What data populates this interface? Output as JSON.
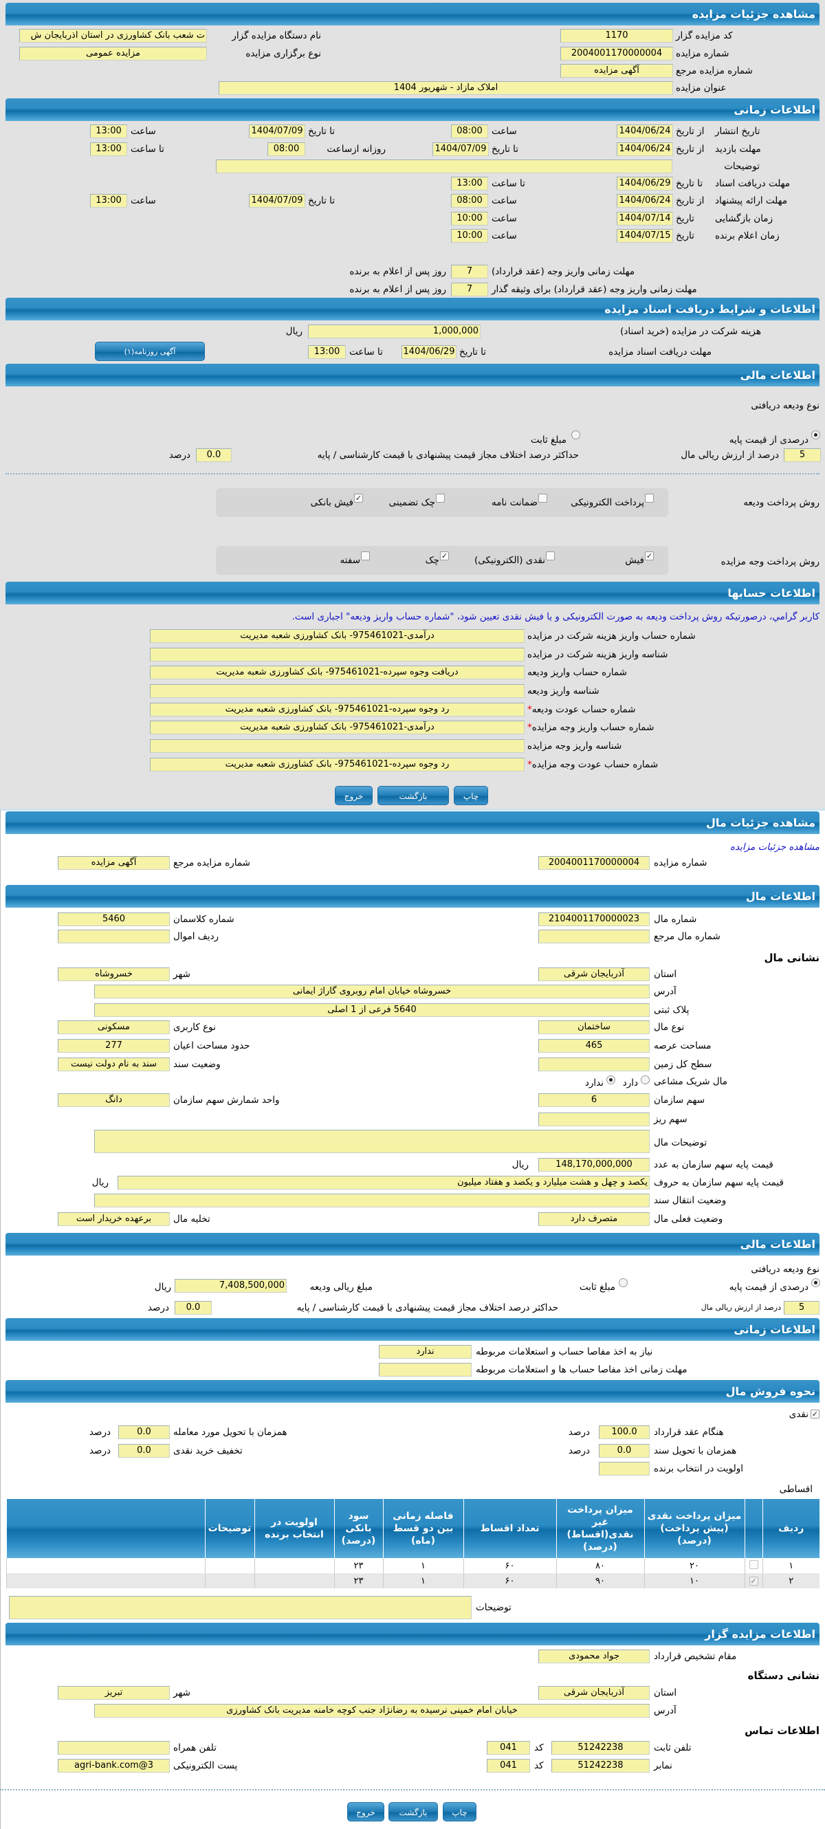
{
  "auction": {
    "header": "مشاهده جزئیات مزایده",
    "code_label": "کد مزایده گزار",
    "code": "1170",
    "org_label": "نام دستگاه مزایده گزار",
    "org": "ت شعب بانک کشاورزی در استان اذربایجان ش",
    "number_label": "شماره مزایده",
    "number": "2004001170000004",
    "type_label": "نوع برگزاری مزایده",
    "type": "مزایده عمومی",
    "ref_label": "شماره مزایده مرجع",
    "ref": "آگهی مزایده",
    "title_label": "عنوان مزایده",
    "title": "املاک مازاد - شهریور 1404"
  },
  "timing": {
    "header": "اطلاعات زمانی",
    "publish": {
      "label": "تاریخ انتشار",
      "from_label": "از تاریخ",
      "from": "1404/06/24",
      "time1_label": "ساعت",
      "time1": "08:00",
      "to_label": "تا تاریخ",
      "to": "1404/07/09",
      "time2_label": "ساعت",
      "time2": "13:00"
    },
    "visit": {
      "label": "مهلت بازدید",
      "from_label": "از تاریخ",
      "from": "1404/06/24",
      "to_label": "تا تاریخ",
      "to": "1404/07/09",
      "daily_label": "روزانه ازساعت",
      "daily_from": "08:00",
      "daily_to_label": "تا ساعت",
      "daily_to": "13:00"
    },
    "notes_label": "توضیحات",
    "notes": "",
    "docs": {
      "label": "مهلت دریافت اسناد",
      "to_label": "تا تاریخ",
      "to": "1404/06/29",
      "time_label": "تا ساعت",
      "time": "13:00"
    },
    "offer": {
      "label": "مهلت ارائه پیشنهاد",
      "from_label": "از تاریخ",
      "from": "1404/06/24",
      "time1_label": "ساعت",
      "time1": "08:00",
      "to_label": "تا تاریخ",
      "to": "1404/07/09",
      "time2_label": "ساعت",
      "time2": "13:00"
    },
    "opening": {
      "label": "زمان بازگشایی",
      "date_label": "تاریخ",
      "date": "1404/07/14",
      "time_label": "ساعت",
      "time": "10:00"
    },
    "winner": {
      "label": "زمان اعلام برنده",
      "date_label": "تاریخ",
      "date": "1404/07/15",
      "time_label": "ساعت",
      "time": "10:00"
    },
    "pay1": {
      "label": "مهلت زمانی واریز وجه (عقد قرارداد)",
      "days": "7",
      "suffix": "روز پس از اعلام به برنده"
    },
    "pay2": {
      "label": "مهلت زمانی واریز وجه (عقد قرارداد) برای وثیقه گذار",
      "days": "7",
      "suffix": "روز پس از اعلام به برنده"
    }
  },
  "docs": {
    "header": "اطلاعات و شرایط دریافت اسناد مزایده",
    "cost_label": "هزینه شرکت در مزایده (خرید اسناد)",
    "cost": "1,000,000",
    "currency": "ریال",
    "deadline_label": "مهلت دریافت اسناد مزایده",
    "to_label": "تا تاریخ",
    "to": "1404/06/29",
    "time_label": "تا ساعت",
    "time": "13:00",
    "newspaper_button": "آگهی روزنامه(۱)"
  },
  "finance": {
    "header": "اطلاعات مالی",
    "deposit_type_label": "نوع ودیعه دریافتی",
    "opt_percent": "درصدی از قیمت پایه",
    "opt_fixed": "مبلغ ثابت",
    "selected": "درصدی از قیمت پایه",
    "percent": "5",
    "percent_label": "درصد از ارزش ریالی مال",
    "max_diff_label": "حداکثر درصد اختلاف مجاز قیمت پیشنهادی با قیمت کارشناسی / پایه",
    "max_diff": "0.0",
    "percent_unit": "درصد",
    "deposit_method_label": "روش پرداخت ودیعه",
    "deposit_methods": [
      {
        "label": "پرداخت الکترونیکی",
        "checked": false
      },
      {
        "label": "ضمانت نامه",
        "checked": false
      },
      {
        "label": "چک تضمینی",
        "checked": false
      },
      {
        "label": "فیش بانکی",
        "checked": true
      }
    ],
    "payment_method_label": "روش پرداخت وجه مزایده",
    "payment_methods": [
      {
        "label": "فیش",
        "checked": true
      },
      {
        "label": "نقدی (الکترونیکی)",
        "checked": false
      },
      {
        "label": "چک",
        "checked": true
      },
      {
        "label": "سفته",
        "checked": false
      }
    ]
  },
  "accounts": {
    "header": "اطلاعات حسابها",
    "notice": "کاربر گرامي، درصورتیکه روش پرداخت ودیعه به صورت الکترونیکی و یا فیش نقدی تعیین شود، \"شماره حساب واریز ودیعه\" اجباری است.",
    "rows": [
      {
        "label": "شماره حساب واریز هزینه شرکت در مزایده",
        "value": "درآمدی-975461021- بانک کشاورزی شعبه مدیریت",
        "required": false
      },
      {
        "label": "شناسه واریز هزینه شرکت در مزایده",
        "value": "",
        "required": false
      },
      {
        "label": "شماره حساب واریز ودیعه",
        "value": "دریافت وجوه سپرده-975461021- بانک کشاورزی شعبه مدیریت",
        "required": false
      },
      {
        "label": "شناسه واریز ودیعه",
        "value": "",
        "required": false
      },
      {
        "label": "شماره حساب عودت ودیعه",
        "value": "رد وجوه سپرده-975461021- بانک کشاورزی شعبه مدیریت",
        "required": true
      },
      {
        "label": "شماره حساب واریز وجه مزایده",
        "value": "درآمدی-975461021- بانک کشاورزی شعبه مدیریت",
        "required": true
      },
      {
        "label": "شناسه واریز وجه مزایده",
        "value": "",
        "required": false
      },
      {
        "label": "شماره حساب عودت وجه مزایده",
        "value": "رد وجوه سپرده-975461021- بانک کشاورزی شعبه مدیریت",
        "required": true
      }
    ],
    "required_mark": "*"
  },
  "buttons": {
    "print": "چاپ",
    "back": "بازگشت",
    "exit": "خروج"
  },
  "item": {
    "header": "مشاهده جزئیات مال",
    "link": "مشاهده جزئیات مزایده",
    "auction_number_label": "شماره مزایده",
    "auction_number": "2004001170000004",
    "ref_label": "شماره مزایده مرجع",
    "ref": "آگهی مزایده"
  },
  "property": {
    "header": "اطلاعات مال",
    "number_label": "شماره مال",
    "number": "2104001170000023",
    "class_label": "شماره کلاسمان",
    "class": "5460",
    "ref_label": "شماره مال مرجع",
    "ref": "",
    "row_label": "ردیف اموال",
    "row": "",
    "address_header": "نشانی مال",
    "province_label": "استان",
    "province": "آذربایجان شرقی",
    "city_label": "شهر",
    "city": "خسروشاه",
    "address_label": "آدرس",
    "address": "خسروشاه خیابان امام روبروی گاراژ ایمانی",
    "plaque_label": "پلاک ثبتی",
    "plaque": "5640 فرعی از 1 اصلی",
    "kind_label": "نوع مال",
    "kind": "ساختمان",
    "usage_label": "نوع کاربری",
    "usage": "مسکونی",
    "land_area_label": "مساحت عرصه",
    "land_area": "465",
    "building_area_label": "حدود مساحت اعیان",
    "building_area": "277",
    "total_land_label": "سطح کل زمین",
    "total_land": "",
    "deed_status_label": "وضعیت سند",
    "deed_status": "سند به نام دولت نیست",
    "shared_label": "مال شریک مشاعی",
    "shared_yes": "دارد",
    "shared_no": "ندارد",
    "shared": "ندارد",
    "share_label": "سهم سازمان",
    "share": "6",
    "share_unit_label": "واحد شمارش سهم سازمان",
    "share_unit": "دانگ",
    "subshare_label": "سهم ریز",
    "subshare": "",
    "desc_label": "توضیحات مال",
    "desc": "",
    "price_label": "قیمت پایه سهم سازمان به عدد",
    "price": "148,170,000,000",
    "price_words_label": "قیمت پایه سهم سازمان به حروف",
    "price_words": "یکصد و چهل و هشت میلیارد و یکصد و هفتاد میلیون",
    "currency": "ریال",
    "transfer_label": "وضعیت انتقال سند",
    "transfer": "",
    "current_status_label": "وضعیت فعلی مال",
    "current_status": "متصرف دارد",
    "evacuation_label": "تخلیه مال",
    "evacuation": "برعهده خریدار است"
  },
  "item_finance": {
    "header": "اطلاعات مالی",
    "deposit_type_label": "نوع ودیعه دریافتی",
    "opt_percent": "درصدی از قیمت پایه",
    "opt_fixed": "مبلغ ثابت",
    "selected": "درصدی از قیمت پایه",
    "deposit_amount_label": "مبلغ ریالی ودیعه",
    "deposit_amount": "7,408,500,000",
    "currency": "ریال",
    "percent": "5",
    "percent_label": "درصد از ارزش ریالی مال",
    "max_diff_label": "حداکثر درصد اختلاف مجاز قیمت پیشنهادی با قیمت کارشناسی / پایه",
    "max_diff": "0.0",
    "percent_unit": "درصد"
  },
  "item_timing": {
    "header": "اطلاعات زمانی",
    "clearance_label": "نیاز به اخذ مفاصا حساب و استعلامات مربوطه",
    "clearance": "ندارد",
    "clearance_deadline_label": "مهلت زمانی اخذ مفاصا حساب ها و استعلامات مربوطه",
    "clearance_deadline": ""
  },
  "sale": {
    "header": "نحوه فروش مال",
    "cash_label": "نقدی",
    "cash_checked": true,
    "on_contract_label": "هنگام عقد قرارداد",
    "on_contract": "100.0",
    "on_delivery_label": "همزمان با تحویل مورد معامله",
    "on_delivery": "0.0",
    "on_deed_label": "همزمان با تحویل سند",
    "on_deed": "0.0",
    "cash_discount_label": "تخفیف خرید نقدی",
    "cash_discount": "0.0",
    "priority_label": "اولویت در انتخاب برنده",
    "priority": "",
    "percent_unit": "درصد",
    "installment_label": "اقساطی",
    "table": {
      "headers": [
        "ردیف",
        "",
        "میزان پرداخت نقدی (پیش پرداخت) (درصد)",
        "میزان پرداخت غیر نقدی(اقساط) (درصد)",
        "تعداد اقساط",
        "فاصله زمانی بین دو قسط (ماه)",
        "سود بانکی (درصد)",
        "اولویت در انتخاب برنده",
        "توضیحات",
        ""
      ],
      "rows": [
        {
          "row": "۱",
          "checked": false,
          "cash": "۲۰",
          "noncash": "۸۰",
          "count": "۶۰",
          "interval": "۱",
          "interest": "۲۳",
          "priority": "",
          "notes": ""
        },
        {
          "row": "۲",
          "checked": true,
          "cash": "۱۰",
          "noncash": "۹۰",
          "count": "۶۰",
          "interval": "۱",
          "interest": "۲۳",
          "priority": "",
          "notes": ""
        }
      ]
    },
    "notes_label": "توضیحات",
    "notes": ""
  },
  "auctioneer": {
    "header": "اطلاعات مزایده گزار",
    "authority_label": "مقام تشخیص قرارداد",
    "authority": "جواد محمودی",
    "address_header": "نشانی دستگاه",
    "province_label": "استان",
    "province": "آذربایجان شرقی",
    "city_label": "شهر",
    "city": "تبریز",
    "address_label": "آدرس",
    "address": "خیابان امام خمینی نرسیده به رضانژاد جنب کوچه خامنه مدیریت بانک کشاورزی",
    "contact_header": "اطلاعات تماس",
    "phone_label": "تلفن ثابت",
    "phone": "51242238",
    "code_label": "کد",
    "phone_code": "041",
    "mobile_label": "تلفن همراه",
    "mobile": "",
    "fax_label": "نمابر",
    "fax": "51242238",
    "fax_code": "041",
    "email_label": "پست الکترونیکی",
    "email": "agri-bank.com@3"
  }
}
